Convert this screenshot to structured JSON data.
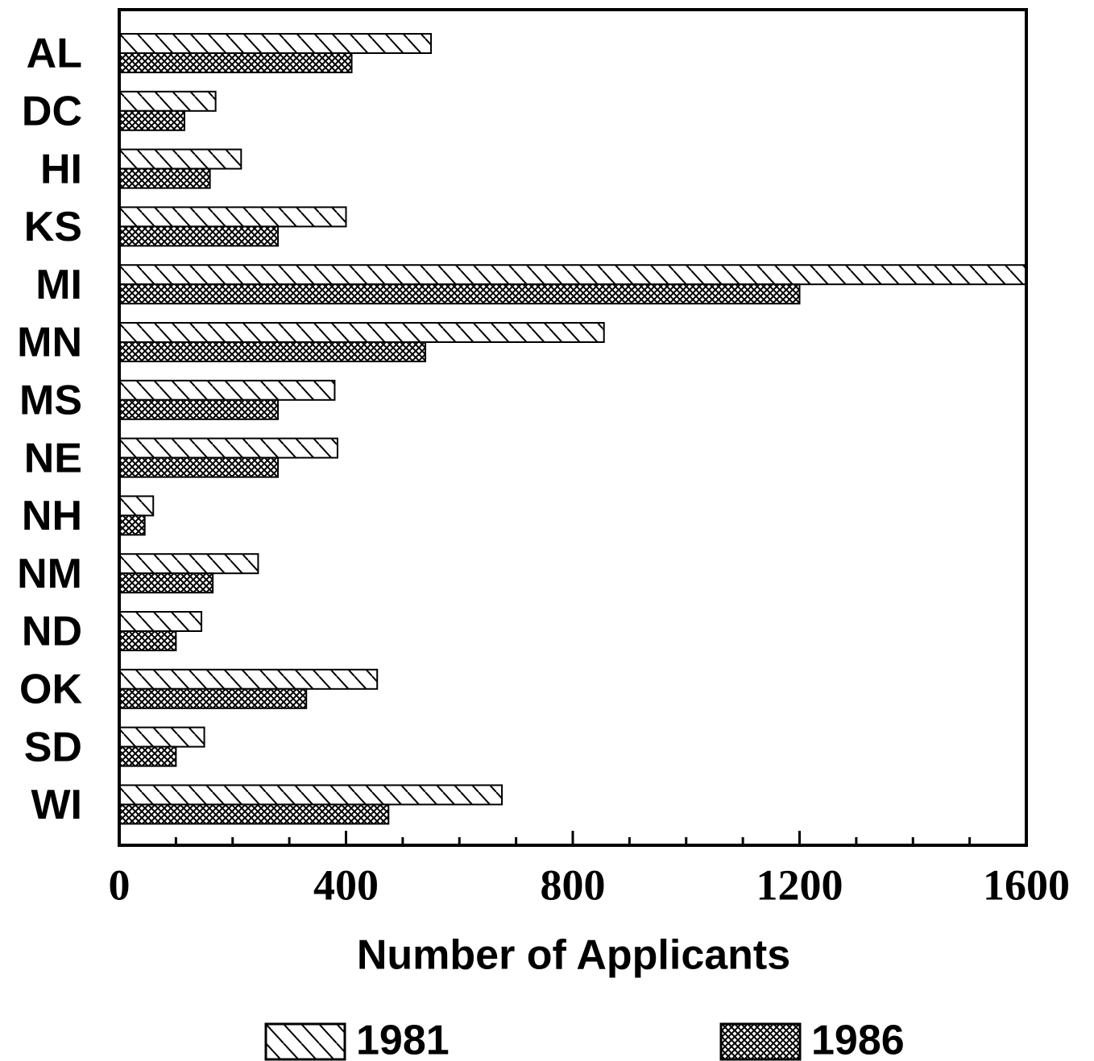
{
  "chart_data": {
    "type": "bar",
    "orientation": "horizontal",
    "xlabel": "Number of Applicants",
    "categories": [
      "AL",
      "DC",
      "HI",
      "KS",
      "MI",
      "MN",
      "MS",
      "NE",
      "NH",
      "NM",
      "ND",
      "OK",
      "SD",
      "WI"
    ],
    "series": [
      {
        "name": "1981",
        "color": "#000000",
        "pattern": "diagonal-hatch",
        "values": [
          550,
          170,
          215,
          400,
          1600,
          855,
          380,
          385,
          60,
          245,
          145,
          455,
          150,
          675
        ]
      },
      {
        "name": "1986",
        "color": "#000000",
        "pattern": "cross-hatch",
        "values": [
          410,
          115,
          160,
          280,
          1200,
          540,
          280,
          280,
          45,
          165,
          100,
          330,
          100,
          475
        ]
      }
    ],
    "xlim": [
      0,
      1600
    ],
    "xticks": [
      0,
      400,
      800,
      1200,
      1600
    ],
    "xminorticks": [
      100,
      200,
      300,
      500,
      600,
      700,
      900,
      1000,
      1100,
      1300,
      1400,
      1500
    ],
    "grid": false,
    "legend": "bottom"
  }
}
